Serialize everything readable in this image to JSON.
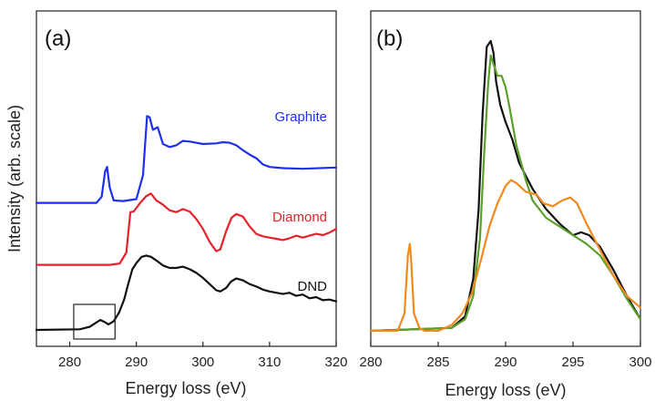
{
  "chart_data": [
    {
      "panel_label": "(a)",
      "type": "line",
      "xlabel": "Energy loss (eV)",
      "ylabel": "Intensity (arb. scale)",
      "xlim": [
        275,
        320
      ],
      "xticks": [
        "280",
        "290",
        "300",
        "310",
        "320"
      ],
      "yticks": "none",
      "series": [
        {
          "name": "Graphite",
          "color": "#1f2ff0",
          "offset": 2.05,
          "x": [
            275,
            284,
            284.8,
            285.3,
            285.6,
            286.0,
            286.6,
            288,
            290,
            291.0,
            291.6,
            292.0,
            292.5,
            293.2,
            294.0,
            295.0,
            296.0,
            297,
            298,
            300,
            302,
            303,
            304,
            305,
            306,
            307,
            308,
            309,
            310,
            312,
            315,
            320
          ],
          "y": [
            0.0,
            0.0,
            0.1,
            0.5,
            0.58,
            0.25,
            0.04,
            0.03,
            0.06,
            0.45,
            1.4,
            1.38,
            1.18,
            1.22,
            0.95,
            0.9,
            0.93,
            1.0,
            0.99,
            0.95,
            0.96,
            0.98,
            0.97,
            0.93,
            0.85,
            0.78,
            0.72,
            0.62,
            0.58,
            0.56,
            0.55,
            0.57
          ]
        },
        {
          "name": "Diamond",
          "color": "#e8202a",
          "offset": 1.05,
          "x": [
            275,
            286,
            287.5,
            288.5,
            289.1,
            289.6,
            290.5,
            291.5,
            292.2,
            293,
            294,
            295,
            296,
            297,
            298,
            299,
            300,
            301,
            302,
            302.6,
            303.5,
            304.3,
            305,
            306,
            307,
            308,
            309,
            310,
            311,
            312,
            313,
            314,
            315,
            316,
            317,
            318,
            319,
            320
          ],
          "y": [
            0.0,
            0.0,
            0.02,
            0.2,
            0.85,
            0.86,
            0.99,
            1.11,
            1.15,
            1.04,
            0.97,
            0.88,
            0.85,
            0.9,
            0.86,
            0.74,
            0.58,
            0.37,
            0.22,
            0.25,
            0.55,
            0.76,
            0.82,
            0.78,
            0.62,
            0.5,
            0.46,
            0.44,
            0.42,
            0.4,
            0.43,
            0.47,
            0.44,
            0.47,
            0.5,
            0.48,
            0.52,
            0.58
          ]
        },
        {
          "name": "DND",
          "color": "#111111",
          "offset": 0.0,
          "x": [
            275,
            281.5,
            283,
            284,
            284.6,
            285.2,
            285.8,
            286.6,
            287.4,
            288.2,
            288.8,
            289.4,
            290.0,
            290.8,
            291.5,
            292.2,
            293,
            294,
            295,
            296,
            297,
            298,
            299,
            300,
            301,
            302,
            302.6,
            303.5,
            304.2,
            305,
            306,
            307,
            308,
            309,
            310,
            311,
            312,
            313,
            314,
            315,
            316,
            317,
            318,
            319,
            320
          ],
          "y": [
            0.0,
            0.01,
            0.05,
            0.12,
            0.16,
            0.13,
            0.09,
            0.14,
            0.28,
            0.5,
            0.75,
            0.98,
            1.08,
            1.18,
            1.2,
            1.18,
            1.12,
            1.04,
            1.0,
            1.0,
            1.02,
            0.98,
            0.92,
            0.84,
            0.74,
            0.64,
            0.62,
            0.68,
            0.78,
            0.83,
            0.8,
            0.74,
            0.7,
            0.65,
            0.62,
            0.6,
            0.58,
            0.6,
            0.55,
            0.57,
            0.51,
            0.53,
            0.48,
            0.49,
            0.46
          ]
        }
      ],
      "annotations": [
        "inset rectangle around 281–287 eV pre-edge peak on DND curve"
      ]
    },
    {
      "panel_label": "(b)",
      "type": "line",
      "xlabel": "Energy loss (eV)",
      "xlim": [
        280,
        300
      ],
      "xticks": [
        "280",
        "285",
        "290",
        "295",
        "300"
      ],
      "yticks": "none",
      "series": [
        {
          "color": "#111111",
          "x": [
            280,
            286,
            287,
            287.6,
            288.0,
            288.3,
            288.6,
            288.9,
            289.1,
            289.3,
            289.6,
            290.0,
            290.5,
            291,
            292,
            293,
            294,
            295,
            295.6,
            296.2,
            297,
            298,
            299,
            300
          ],
          "y": [
            0.0,
            0.01,
            0.05,
            0.18,
            0.42,
            0.75,
            0.98,
            1.0,
            0.96,
            0.86,
            0.78,
            0.72,
            0.66,
            0.58,
            0.49,
            0.42,
            0.37,
            0.33,
            0.34,
            0.33,
            0.29,
            0.21,
            0.12,
            0.04
          ]
        },
        {
          "color": "#5aa02a",
          "x": [
            280,
            286,
            287,
            287.6,
            288.1,
            288.4,
            288.7,
            288.9,
            289.1,
            289.4,
            289.7,
            290.0,
            290.3,
            290.8,
            291.5,
            292,
            293,
            294,
            295,
            296,
            297,
            298,
            299,
            300
          ],
          "y": [
            0.0,
            0.01,
            0.04,
            0.12,
            0.32,
            0.6,
            0.85,
            0.95,
            0.92,
            0.88,
            0.88,
            0.84,
            0.77,
            0.64,
            0.52,
            0.45,
            0.39,
            0.36,
            0.33,
            0.3,
            0.26,
            0.19,
            0.11,
            0.04
          ]
        },
        {
          "color": "#f08a1e",
          "x": [
            280,
            282.0,
            282.5,
            282.75,
            282.9,
            283.0,
            283.2,
            283.6,
            284,
            285,
            286,
            286.8,
            287.5,
            288.2,
            288.8,
            289.4,
            290.0,
            290.4,
            290.8,
            291.5,
            292.3,
            292.8,
            293.5,
            294.2,
            294.8,
            295.3,
            296,
            297,
            298,
            299,
            300
          ],
          "y": [
            0.0,
            0.0,
            0.06,
            0.26,
            0.3,
            0.24,
            0.06,
            0.01,
            0.0,
            0.0,
            0.02,
            0.06,
            0.13,
            0.25,
            0.36,
            0.44,
            0.5,
            0.52,
            0.51,
            0.48,
            0.47,
            0.44,
            0.43,
            0.45,
            0.46,
            0.44,
            0.37,
            0.28,
            0.19,
            0.12,
            0.08
          ]
        }
      ]
    }
  ]
}
